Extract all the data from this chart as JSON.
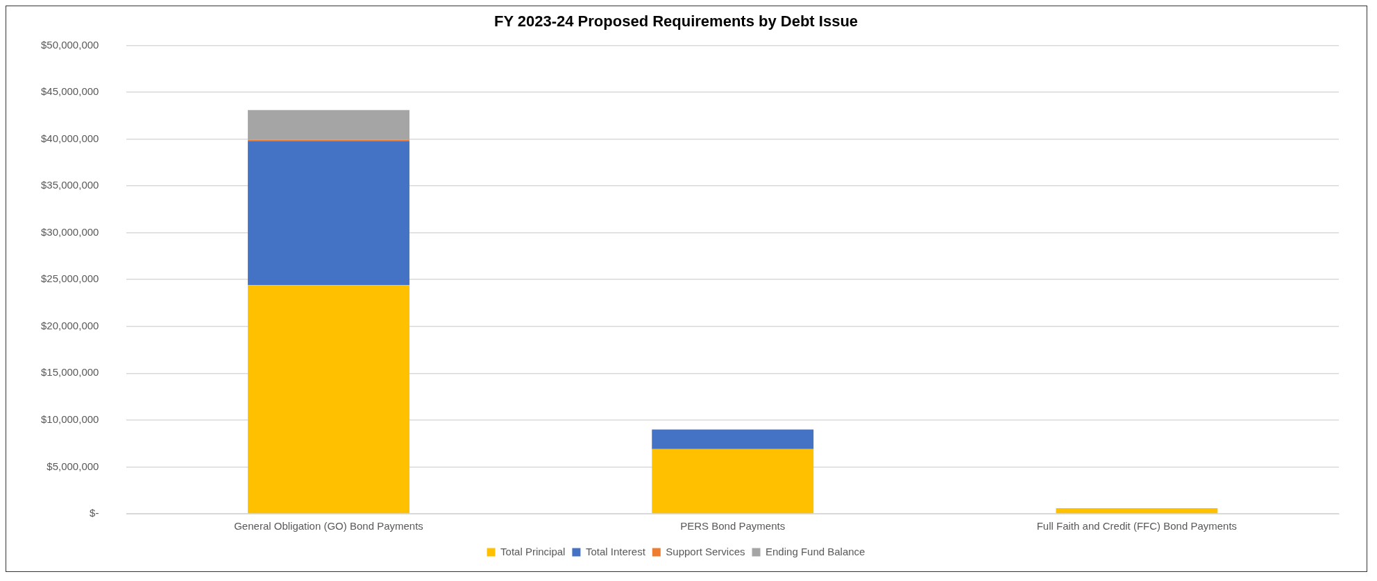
{
  "chart_data": {
    "type": "bar",
    "title": "FY 2023-24 Proposed Requirements by Debt Issue",
    "categories": [
      "General Obligation (GO) Bond Payments",
      "PERS Bond Payments",
      "Full Faith and Credit (FFC) Bond Payments"
    ],
    "stacked": true,
    "series": [
      {
        "name": "Total Principal",
        "color": "#ffc000",
        "values": [
          24400000,
          6900000,
          600000
        ]
      },
      {
        "name": "Total Interest",
        "color": "#4472c4",
        "values": [
          15400000,
          2100000,
          0
        ]
      },
      {
        "name": "Support Services",
        "color": "#ed7d31",
        "values": [
          100000,
          0,
          0
        ]
      },
      {
        "name": "Ending Fund Balance",
        "color": "#a5a5a5",
        "values": [
          3200000,
          0,
          0
        ]
      }
    ],
    "ylim": [
      0,
      50000000
    ],
    "yticks": [
      {
        "value": 0,
        "label": "$-"
      },
      {
        "value": 5000000,
        "label": "$5,000,000"
      },
      {
        "value": 10000000,
        "label": "$10,000,000"
      },
      {
        "value": 15000000,
        "label": "$15,000,000"
      },
      {
        "value": 20000000,
        "label": "$20,000,000"
      },
      {
        "value": 25000000,
        "label": "$25,000,000"
      },
      {
        "value": 30000000,
        "label": "$30,000,000"
      },
      {
        "value": 35000000,
        "label": "$35,000,000"
      },
      {
        "value": 40000000,
        "label": "$40,000,000"
      },
      {
        "value": 45000000,
        "label": "$45,000,000"
      },
      {
        "value": 50000000,
        "label": "$50,000,000"
      }
    ],
    "grid": "y",
    "legend": "bottom"
  }
}
